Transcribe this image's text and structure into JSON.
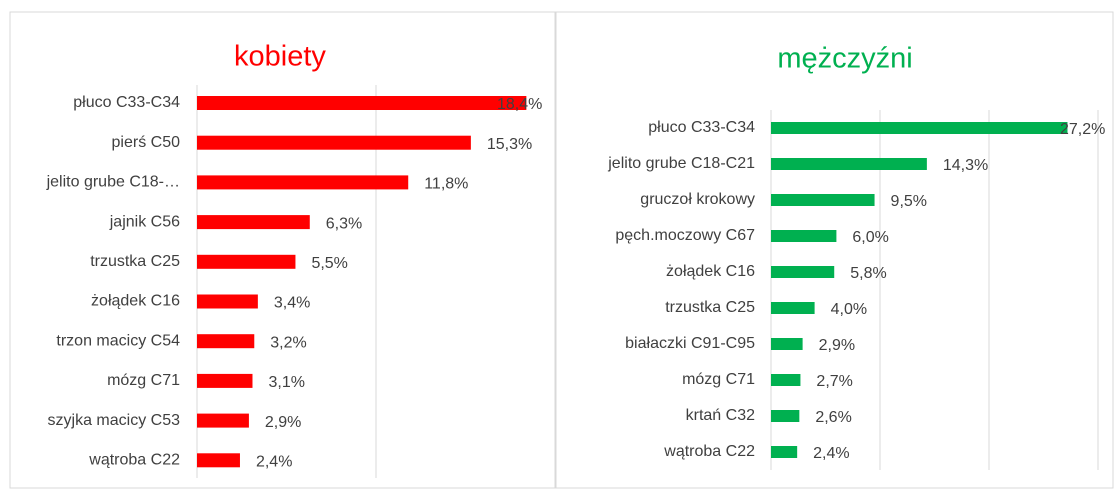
{
  "chart_data": [
    {
      "type": "bar",
      "orientation": "horizontal",
      "title": "kobiety",
      "categories": [
        "płuco C33-C34",
        "pierś C50",
        "jelito grube C18-…",
        "jajnik C56",
        "trzustka C25",
        "żołądek C16",
        "trzon macicy C54",
        "mózg C71",
        "szyjka macicy C53",
        "wątroba C22"
      ],
      "values": [
        18.4,
        15.3,
        11.8,
        6.3,
        5.5,
        3.4,
        3.2,
        3.1,
        2.9,
        2.4
      ],
      "value_labels": [
        "18,4%",
        "15,3%",
        "11,8%",
        "6,3%",
        "5,5%",
        "3,4%",
        "3,2%",
        "3,1%",
        "2,9%",
        "2,4%"
      ],
      "color": "#ff0000",
      "xlim": [
        0,
        20
      ],
      "xticks": [
        0,
        10,
        20
      ],
      "grid": true
    },
    {
      "type": "bar",
      "orientation": "horizontal",
      "title": "mężczyźni",
      "categories": [
        "płuco C33-C34",
        "jelito grube C18-C21",
        "gruczoł krokowy",
        "pęch.moczowy C67",
        "żołądek C16",
        "trzustka C25",
        "białaczki C91-C95",
        "mózg C71",
        "krtań C32",
        "wątroba C22"
      ],
      "values": [
        27.2,
        14.3,
        9.5,
        6.0,
        5.8,
        4.0,
        2.9,
        2.7,
        2.6,
        2.4
      ],
      "value_labels": [
        "27,2%",
        "14,3%",
        "9,5%",
        "6,0%",
        "5,8%",
        "4,0%",
        "2,9%",
        "2,7%",
        "2,6%",
        "2,4%"
      ],
      "color": "#00b050",
      "xlim": [
        0,
        30
      ],
      "xticks": [
        0,
        10,
        20,
        30
      ],
      "grid": true
    }
  ]
}
